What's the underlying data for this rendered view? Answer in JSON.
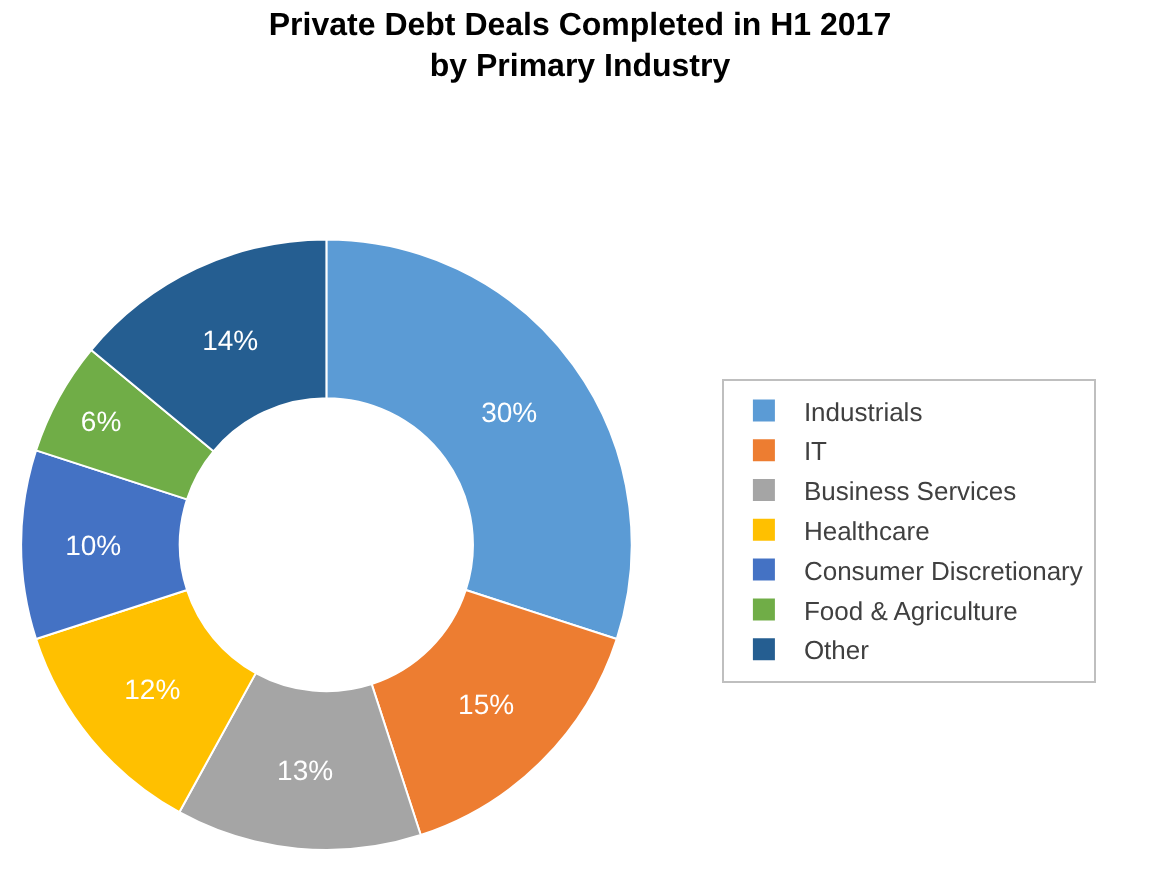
{
  "chart_data": {
    "type": "donut",
    "title": "Private Debt Deals Completed in H1 2017\nby Primary Industry",
    "categories": [
      "Industrials",
      "IT",
      "Business Services",
      "Healthcare",
      "Consumer Discretionary",
      "Food & Agriculture",
      "Other"
    ],
    "values": [
      30,
      15,
      13,
      12,
      10,
      6,
      14
    ],
    "value_labels": [
      "30%",
      "15%",
      "13%",
      "12%",
      "10%",
      "6%",
      "14%"
    ],
    "colors": [
      "#5b9bd5",
      "#ed7d31",
      "#a5a5a5",
      "#ffc000",
      "#4472c4",
      "#70ad47",
      "#255e91"
    ],
    "legend": "right"
  }
}
